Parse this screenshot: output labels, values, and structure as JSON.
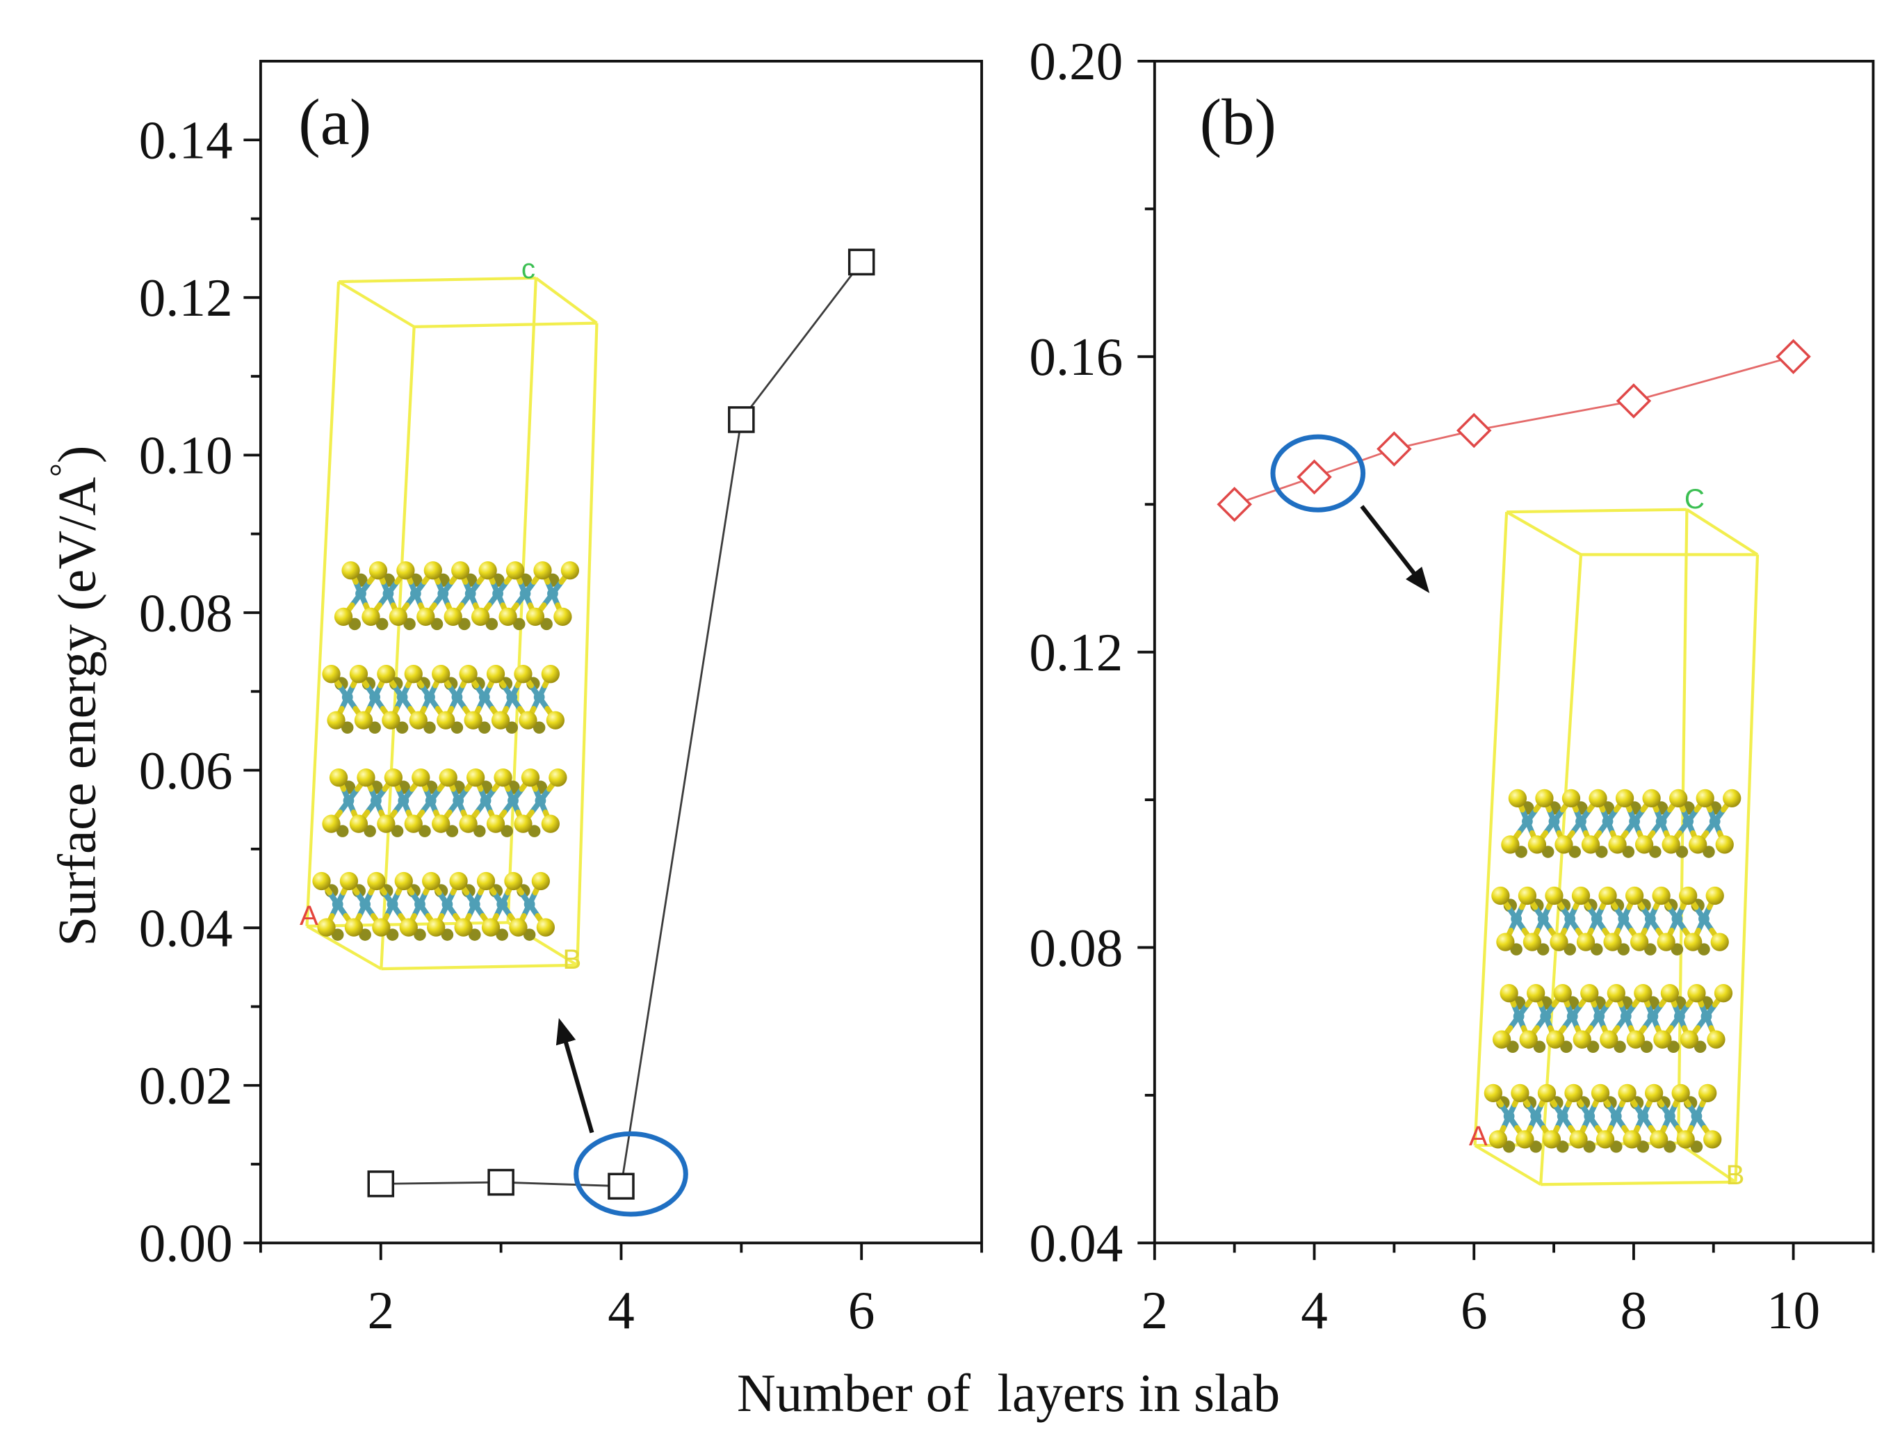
{
  "chart_data": {
    "type": "line",
    "xlabel": "Number of  layers in slab",
    "ylabel": "Surface energy (eV/A°)",
    "panels": [
      {
        "label": "(a)",
        "x": [
          2,
          3,
          4,
          5,
          6
        ],
        "series": [
          {
            "values": [
              0.0075,
              0.0077,
              0.0072,
              0.1045,
              0.1245
            ],
            "marker": "open-square",
            "line_color": "#3c3c3c",
            "marker_color": "#1c1c1c"
          }
        ],
        "xlim": [
          1,
          7
        ],
        "ylim": [
          0,
          0.15
        ],
        "xticks": [
          2,
          4,
          6
        ],
        "xticklabels": [
          "2",
          "4",
          "6"
        ],
        "xminor": [
          1,
          3,
          5,
          7
        ],
        "yticks": [
          0,
          0.02,
          0.04,
          0.06,
          0.08,
          0.1,
          0.12,
          0.14
        ],
        "yticklabels": [
          "0.00",
          "0.02",
          "0.04",
          "0.06",
          "0.08",
          "0.10",
          "0.12",
          "0.14"
        ],
        "yminor": [
          0.01,
          0.03,
          0.05,
          0.07,
          0.09,
          0.11,
          0.13
        ],
        "circled_x": 4,
        "inset": {
          "c_axis": "c",
          "a_axis": "A",
          "b_axis": "B"
        }
      },
      {
        "label": "(b)",
        "x": [
          3,
          4,
          5,
          6,
          8,
          10
        ],
        "series": [
          {
            "values": [
              0.14,
              0.1437,
              0.1475,
              0.15,
              0.154,
              0.16
            ],
            "marker": "open-diamond",
            "line_color": "#e46a6a",
            "marker_color": "#e04848"
          }
        ],
        "xlim": [
          2,
          11
        ],
        "ylim": [
          0.04,
          0.2
        ],
        "xticks": [
          2,
          4,
          6,
          8,
          10
        ],
        "xticklabels": [
          "2",
          "4",
          "6",
          "8",
          "10"
        ],
        "xminor": [
          3,
          5,
          7,
          9,
          11
        ],
        "yticks": [
          0.04,
          0.08,
          0.12,
          0.16,
          0.2
        ],
        "yticklabels": [
          "0.04",
          "0.08",
          "0.12",
          "0.16",
          "0.20"
        ],
        "yminor": [
          0.06,
          0.1,
          0.14,
          0.18
        ],
        "circled_x": 4,
        "inset": {
          "c_axis": "C",
          "a_axis": "A",
          "b_axis": "B"
        }
      }
    ]
  },
  "colors": {
    "highlight_circle": "#1f6fc2",
    "arrow": "#111111",
    "cell_box": "#f2ee4e",
    "sulfur": "#dccb1a",
    "sulfur_back": "#8e8b1e",
    "metal": "#4f9fb6",
    "c_axis_label": "#3bbf52",
    "a_axis_label": "#e4453d",
    "b_axis_label": "#e3da3a"
  }
}
